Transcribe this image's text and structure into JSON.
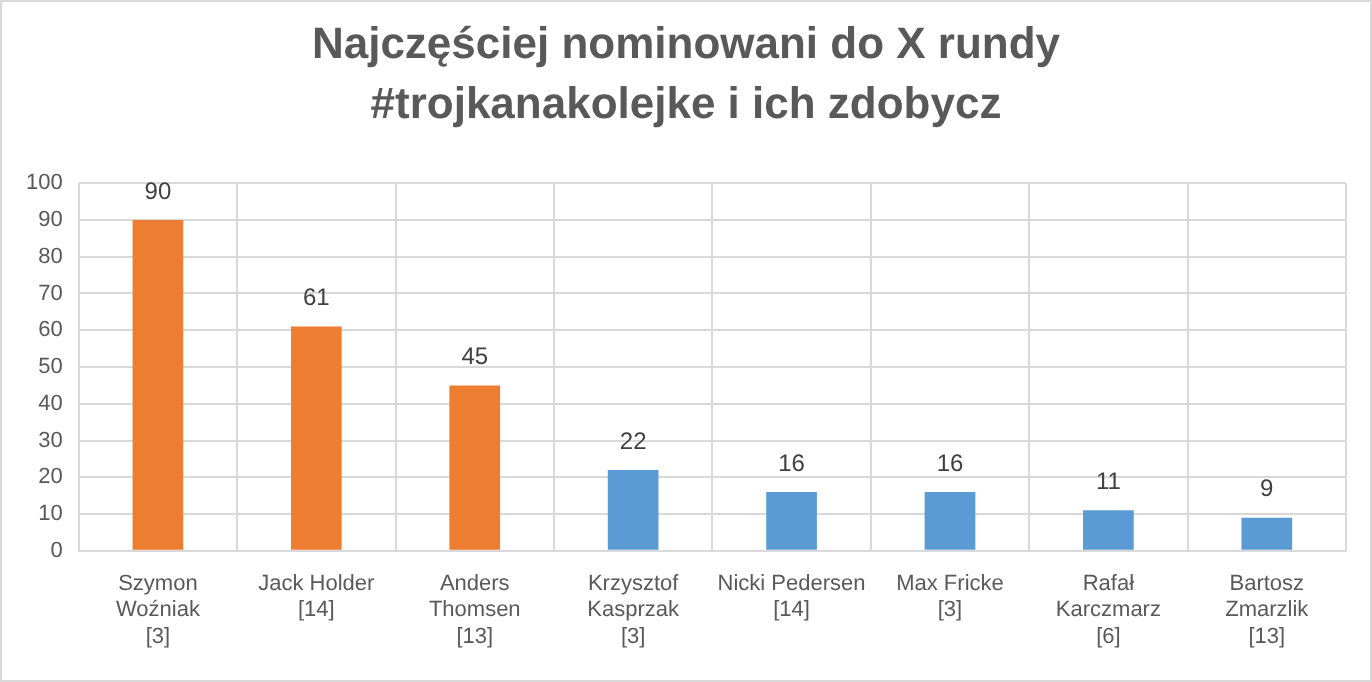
{
  "chart_data": {
    "type": "bar",
    "title": "Najczęściej nominowani do X rundy\n#trojkanakolejke i ich zdobycz",
    "categories": [
      "Szymon\nWoźniak\n[3]",
      "Jack Holder\n[14]",
      "Anders\nThomsen\n[13]",
      "Krzysztof\nKasprzak\n[3]",
      "Nicki Pedersen\n[14]",
      "Max Fricke\n[3]",
      "Rafał\nKarczmarz\n[6]",
      "Bartosz\nZmarzlik\n[13]"
    ],
    "values": [
      90,
      61,
      45,
      22,
      16,
      16,
      11,
      9
    ],
    "colors": [
      "#ed7d31",
      "#ed7d31",
      "#ed7d31",
      "#5b9bd5",
      "#5b9bd5",
      "#5b9bd5",
      "#5b9bd5",
      "#5b9bd5"
    ],
    "ylim": [
      0,
      100
    ],
    "yticks": [
      0,
      10,
      20,
      30,
      40,
      50,
      60,
      70,
      80,
      90,
      100
    ],
    "grid": true,
    "data_labels": true
  }
}
